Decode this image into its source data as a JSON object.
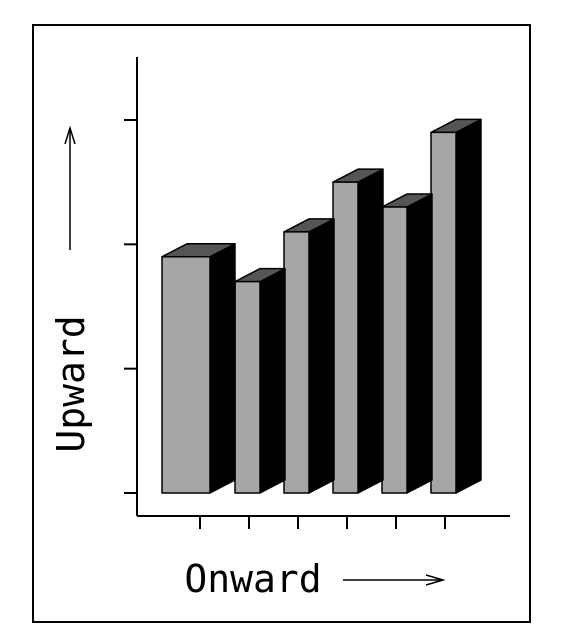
{
  "chart_data": {
    "type": "bar",
    "style": "3d",
    "xlabel": "Onward",
    "ylabel": "Upward",
    "categories": [
      "",
      "",
      "",
      "",
      "",
      ""
    ],
    "values": [
      19,
      17,
      21,
      25,
      23,
      29
    ],
    "ylim": [
      0,
      35
    ],
    "yticks": [
      0,
      10,
      20,
      30
    ],
    "grid": false,
    "legend": "none",
    "colors": {
      "bar_front": "#a6a6a6",
      "bar_top": "#555555",
      "bar_side": "#000000",
      "outline": "#000000",
      "background": "#ffffff"
    }
  }
}
